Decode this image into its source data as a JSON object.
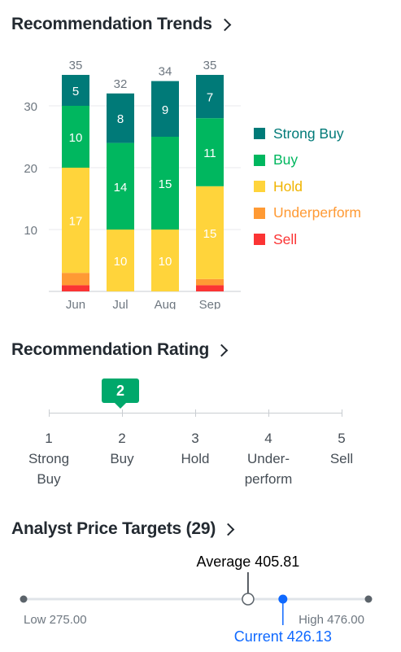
{
  "trends": {
    "title": "Recommendation Trends",
    "chart_data": {
      "type": "bar",
      "stacked": true,
      "categories": [
        "Jun",
        "Jul",
        "Aug",
        "Sep"
      ],
      "totals": [
        35,
        32,
        34,
        35
      ],
      "series": [
        {
          "name": "Strong Buy",
          "color": "#007a78",
          "values": [
            5,
            8,
            9,
            7
          ]
        },
        {
          "name": "Buy",
          "color": "#00b75f",
          "values": [
            10,
            14,
            15,
            11
          ]
        },
        {
          "name": "Hold",
          "color": "#ffd43b",
          "values": [
            17,
            10,
            10,
            15
          ]
        },
        {
          "name": "Underperform",
          "color": "#ff9a34",
          "values": [
            2,
            0,
            0,
            1
          ]
        },
        {
          "name": "Sell",
          "color": "#fb3434",
          "values": [
            1,
            0,
            0,
            1
          ]
        }
      ],
      "yticks": [
        "10",
        "20",
        "30"
      ],
      "ylim": [
        0,
        35
      ]
    }
  },
  "rating": {
    "title": "Recommendation Rating",
    "value": "2",
    "scale": [
      {
        "num": "1",
        "line1": "Strong",
        "line2": "Buy"
      },
      {
        "num": "2",
        "line1": "Buy",
        "line2": ""
      },
      {
        "num": "3",
        "line1": "Hold",
        "line2": ""
      },
      {
        "num": "4",
        "line1": "Under-",
        "line2": "perform"
      },
      {
        "num": "5",
        "line1": "Sell",
        "line2": ""
      }
    ]
  },
  "targets": {
    "title": "Analyst Price Targets (29)",
    "low_label": "Low 275.00",
    "high_label": "High 476.00",
    "average_label": "Average 405.81",
    "current_label": "Current 426.13",
    "low": 275.0,
    "high": 476.0,
    "average": 405.81,
    "current": 426.13,
    "current_color": "#0f69ff"
  }
}
